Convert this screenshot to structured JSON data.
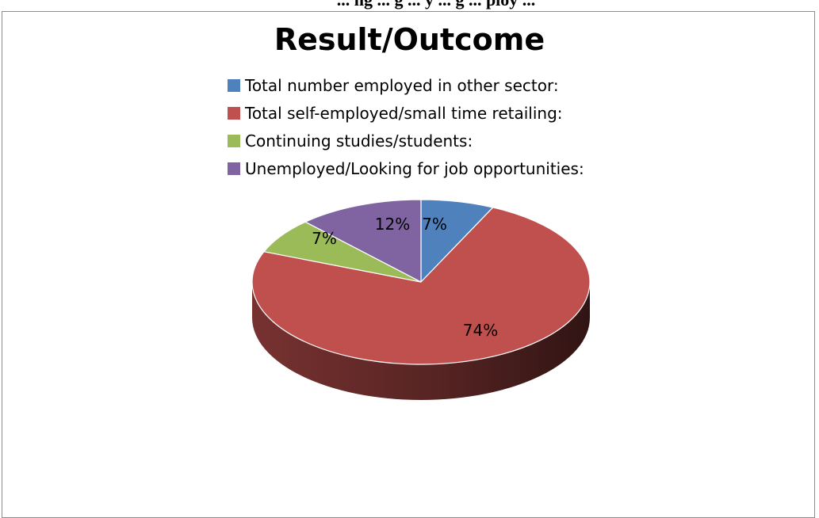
{
  "caption": "... ng ... g ... y ... g ... ploy ...",
  "chart_data": {
    "type": "pie",
    "title": "Result/Outcome",
    "legend_position": "top",
    "slices": [
      {
        "name": "Total number employed in other sector:",
        "value": 7,
        "label": "7%",
        "color": "#4f81bd"
      },
      {
        "name": "Total self-employed/small time retailing:",
        "value": 74,
        "label": "74%",
        "color": "#c0504d"
      },
      {
        "name": "Continuing studies/students:",
        "value": 7,
        "label": "7%",
        "color": "#9bbb59"
      },
      {
        "name": "Unemployed/Looking for job opportunities:",
        "value": 12,
        "label": "12%",
        "color": "#8064a2"
      }
    ]
  }
}
